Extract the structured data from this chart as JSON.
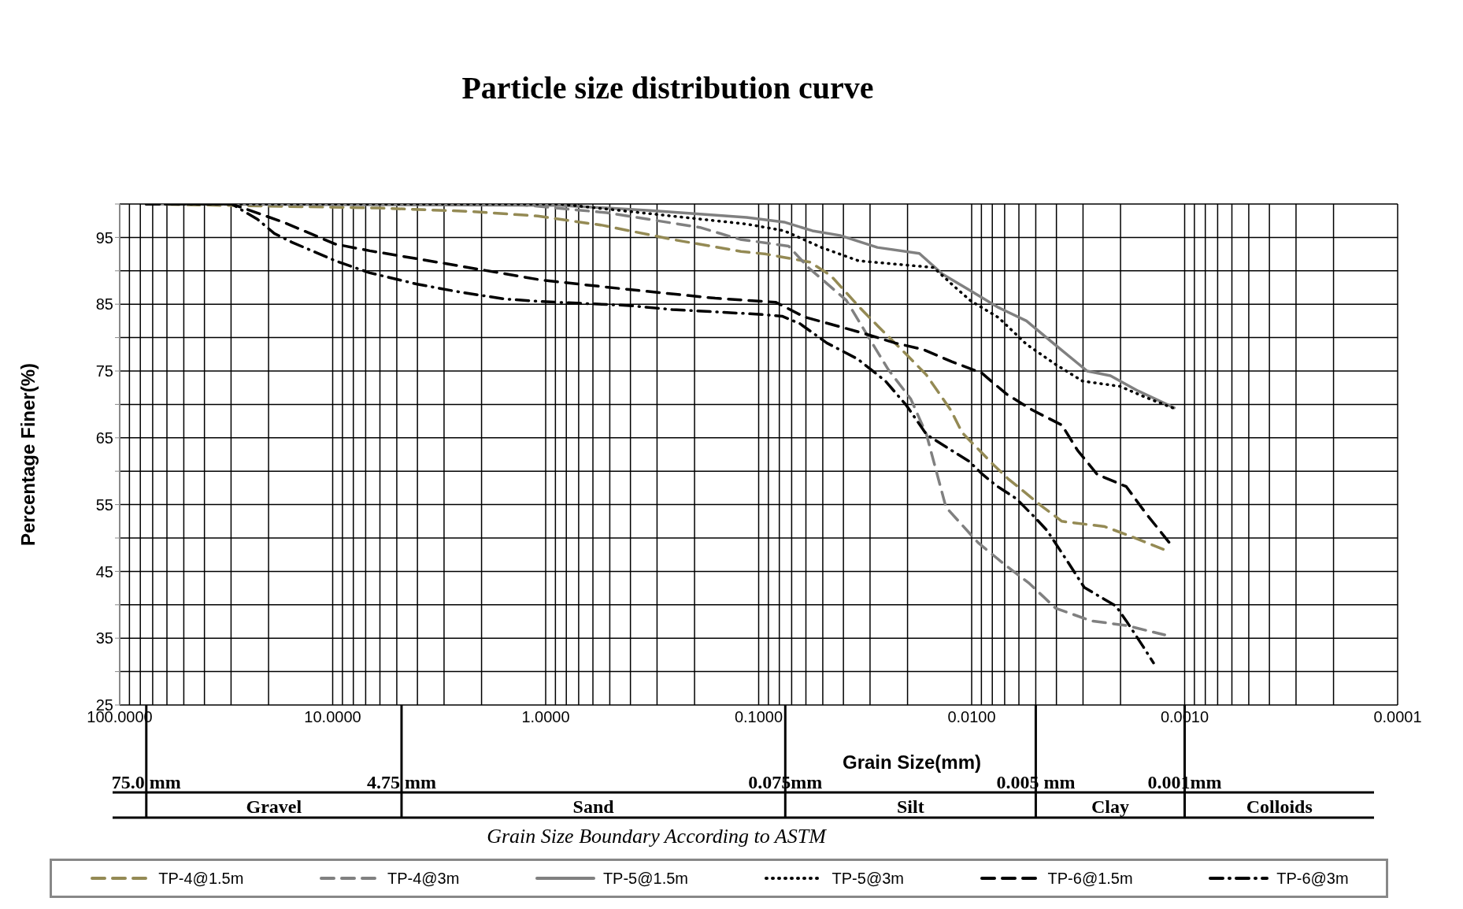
{
  "chart_data": {
    "type": "line",
    "title": "Particle size distribution curve",
    "xlabel": "Grain Size(mm)",
    "ylabel": "Percentage Finer(%)",
    "log": "x",
    "grid": true,
    "legend": "bottom",
    "xlim": [
      100,
      0.0001
    ],
    "xticks": [
      {
        "value": 100,
        "label": "100.0000"
      },
      {
        "value": 90,
        "label": null
      },
      {
        "value": 80,
        "label": null
      },
      {
        "value": 70,
        "label": null
      },
      {
        "value": 60,
        "label": null
      },
      {
        "value": 50,
        "label": null
      },
      {
        "value": 40,
        "label": null
      },
      {
        "value": 30,
        "label": null
      },
      {
        "value": 20,
        "label": null
      },
      {
        "value": 10,
        "label": "10.0000"
      },
      {
        "value": 9,
        "label": null
      },
      {
        "value": 8,
        "label": null
      },
      {
        "value": 7,
        "label": null
      },
      {
        "value": 6,
        "label": null
      },
      {
        "value": 5,
        "label": null
      },
      {
        "value": 4,
        "label": null
      },
      {
        "value": 3,
        "label": null
      },
      {
        "value": 2,
        "label": null
      },
      {
        "value": 1,
        "label": "1.0000"
      },
      {
        "value": 0.9,
        "label": null
      },
      {
        "value": 0.8,
        "label": null
      },
      {
        "value": 0.7,
        "label": null
      },
      {
        "value": 0.6,
        "label": null
      },
      {
        "value": 0.5,
        "label": null
      },
      {
        "value": 0.4,
        "label": null
      },
      {
        "value": 0.3,
        "label": null
      },
      {
        "value": 0.2,
        "label": null
      },
      {
        "value": 0.1,
        "label": "0.1000"
      },
      {
        "value": 0.09,
        "label": null
      },
      {
        "value": 0.08,
        "label": null
      },
      {
        "value": 0.07,
        "label": null
      },
      {
        "value": 0.06,
        "label": null
      },
      {
        "value": 0.05,
        "label": null
      },
      {
        "value": 0.04,
        "label": null
      },
      {
        "value": 0.03,
        "label": null
      },
      {
        "value": 0.02,
        "label": null
      },
      {
        "value": 0.01,
        "label": "0.0100"
      },
      {
        "value": 0.009,
        "label": null
      },
      {
        "value": 0.008,
        "label": null
      },
      {
        "value": 0.007,
        "label": null
      },
      {
        "value": 0.006,
        "label": null
      },
      {
        "value": 0.005,
        "label": null
      },
      {
        "value": 0.004,
        "label": null
      },
      {
        "value": 0.003,
        "label": null
      },
      {
        "value": 0.002,
        "label": null
      },
      {
        "value": 0.001,
        "label": "0.0010"
      },
      {
        "value": 0.0009,
        "label": null
      },
      {
        "value": 0.0008,
        "label": null
      },
      {
        "value": 0.0007,
        "label": null
      },
      {
        "value": 0.0006,
        "label": null
      },
      {
        "value": 0.0005,
        "label": null
      },
      {
        "value": 0.0004,
        "label": null
      },
      {
        "value": 0.0003,
        "label": null
      },
      {
        "value": 0.0002,
        "label": null
      },
      {
        "value": 0.0001,
        "label": "0.0001"
      }
    ],
    "ylim": [
      25,
      100
    ],
    "yticks": [
      25,
      {
        "value": 30,
        "label": null
      },
      35,
      {
        "value": 40,
        "label": null
      },
      45,
      {
        "value": 50,
        "label": null
      },
      55,
      {
        "value": 60,
        "label": null
      },
      65,
      {
        "value": 70,
        "label": null
      },
      75,
      {
        "value": 80,
        "label": null
      },
      85,
      {
        "value": 90,
        "label": null
      },
      95,
      {
        "value": 100,
        "label": null
      }
    ],
    "series": [
      {
        "name": "TP-4@1.5m",
        "color": "#948a54",
        "line_style": "dashed",
        "x": [
          75,
          6.13,
          2.3,
          1.09,
          0.538,
          0.255,
          0.121,
          0.0923,
          0.0574,
          0.0459,
          0.0333,
          0.0275,
          0.0197,
          0.0163,
          0.0125,
          0.0111,
          0.00787,
          0.00676,
          0.0047,
          0.00377,
          0.00237,
          0.00184,
          0.00126
        ],
        "values": [
          100,
          99.4,
          98.9,
          98.2,
          96.8,
          94.7,
          92.9,
          92.5,
          91.3,
          89.3,
          84.4,
          81.7,
          77.1,
          74.4,
          69.1,
          65.8,
          60.9,
          58.9,
          54.8,
          52.5,
          51.7,
          50.4,
          48.3
        ]
      },
      {
        "name": "TP-4@3m",
        "color": "#808080",
        "line_style": "dashed",
        "x": [
          75,
          1.42,
          0.517,
          0.189,
          0.122,
          0.0723,
          0.0585,
          0.0388,
          0.0304,
          0.0246,
          0.0193,
          0.0163,
          0.0132,
          0.00933,
          0.00705,
          0.00536,
          0.00404,
          0.00275,
          0.00188,
          0.00124
        ],
        "values": [
          100,
          100,
          98.7,
          96.5,
          94.7,
          93.7,
          90.5,
          85.6,
          80,
          75.2,
          70.8,
          65.5,
          54.6,
          49.3,
          46.1,
          43.2,
          39.5,
          37.6,
          36.9,
          35.5
        ]
      },
      {
        "name": "TP-5@1.5m",
        "color": "#808080",
        "line_style": "solid",
        "x": [
          75,
          0.857,
          0.313,
          0.114,
          0.076,
          0.056,
          0.0415,
          0.0277,
          0.0176,
          0.0137,
          0.0101,
          0.00748,
          0.00553,
          0.00408,
          0.00287,
          0.00223,
          0.00165,
          0.00112
        ],
        "values": [
          100,
          99.8,
          99,
          98,
          97.3,
          96,
          95.3,
          93.5,
          92.6,
          89.5,
          87,
          84.5,
          82.5,
          79,
          75,
          74.3,
          72,
          69.5
        ]
      },
      {
        "name": "TP-5@3m",
        "color": "#000000",
        "line_style": "dotted",
        "x": [
          75,
          0.857,
          0.313,
          0.114,
          0.076,
          0.0508,
          0.034,
          0.0227,
          0.0151,
          0.0124,
          0.0101,
          0.00748,
          0.00553,
          0.00404,
          0.00302,
          0.00201,
          0.00151,
          0.00112
        ],
        "values": [
          100,
          100,
          98.5,
          97,
          96,
          93.5,
          91.5,
          91,
          90.5,
          88,
          85.5,
          83,
          79,
          76,
          73.5,
          72.7,
          71,
          69.4
        ]
      },
      {
        "name": "TP-6@1.5m",
        "color": "#000000",
        "line_style": "dashed",
        "x": [
          75,
          29.8,
          17.1,
          9.72,
          6.7,
          2.62,
          1.04,
          0.406,
          0.16,
          0.0833,
          0.061,
          0.0446,
          0.0326,
          0.0229,
          0.0168,
          0.0124,
          0.00897,
          0.00683,
          0.00515,
          0.00377,
          0.00318,
          0.00257,
          0.00188,
          0.00153,
          0.00118
        ],
        "values": [
          100,
          100,
          97.3,
          94,
          93,
          90.8,
          88.6,
          87.2,
          85.9,
          85.3,
          83.1,
          81.9,
          80.7,
          79.2,
          78.2,
          76.4,
          74.7,
          71.5,
          69.1,
          66.9,
          63.1,
          59.5,
          57.7,
          53.8,
          49.3
        ]
      },
      {
        "name": "TP-6@3m",
        "color": "#000000",
        "line_style": "dashdot",
        "x": [
          75,
          29.8,
          22.5,
          18.8,
          15.6,
          9.72,
          6.7,
          4.01,
          2.62,
          1.58,
          1.04,
          0.652,
          0.406,
          0.255,
          0.1,
          0.0776,
          0.0641,
          0.0479,
          0.0343,
          0.0254,
          0.0203,
          0.0163,
          0.0124,
          0.0103,
          0.00887,
          0.00763,
          0.00618,
          0.00509,
          0.00442,
          0.00355,
          0.00296,
          0.0021,
          0.00188,
          0.00157,
          0.0014
        ],
        "values": [
          100,
          100,
          97.7,
          95.6,
          94.3,
          91.5,
          89.7,
          88,
          86.9,
          85.8,
          85.4,
          85.1,
          84.8,
          84.2,
          83.5,
          83.2,
          82.1,
          79.2,
          76.8,
          73.5,
          69.9,
          65.5,
          63.1,
          61.5,
          59.5,
          57.8,
          55.9,
          53.2,
          51.1,
          46.5,
          42.6,
          39.8,
          37.6,
          33.8,
          31.3
        ]
      }
    ],
    "ref_lines": [
      {
        "axis": "x",
        "value": 75,
        "label": "75.0 mm"
      },
      {
        "axis": "x",
        "value": 4.75,
        "label": "4.75 mm"
      },
      {
        "axis": "x",
        "value": 0.075,
        "label": "0.075mm"
      },
      {
        "axis": "x",
        "value": 0.005,
        "label": "0.005 mm"
      },
      {
        "axis": "x",
        "value": 0.001,
        "label": "0.001mm"
      }
    ],
    "annotations": [
      "Gravel",
      "Sand",
      "Silt",
      "Clay",
      "Colloids",
      "Grain Size Boundary According to ASTM"
    ]
  }
}
